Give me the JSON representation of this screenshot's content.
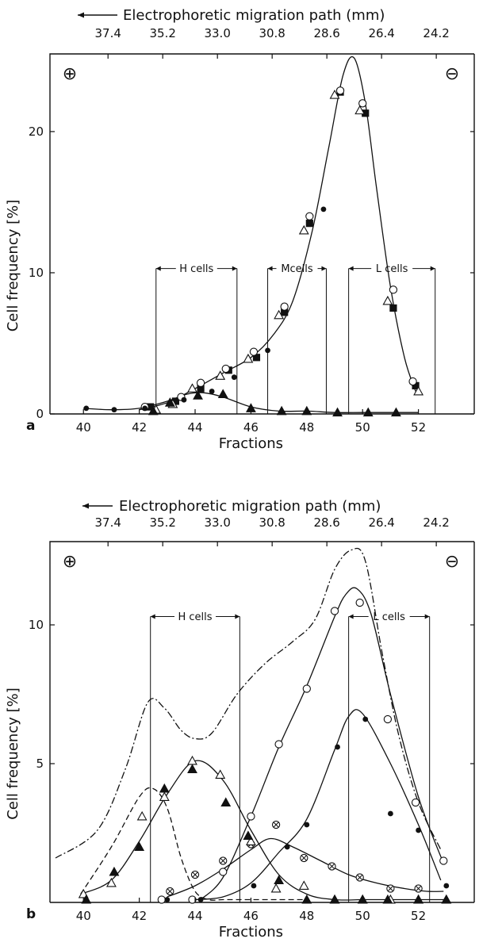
{
  "chart_data": [
    {
      "type": "scatter",
      "panel_label": "a",
      "top_axis_label": "Electrophoretic migration path (mm)",
      "top_ticks": [
        "37.4",
        "35.2",
        "33.0",
        "30.8",
        "28.6",
        "26.4",
        "24.2"
      ],
      "top_tick_fractions": [
        40.88,
        42.84,
        44.8,
        46.76,
        48.72,
        50.68,
        52.64
      ],
      "xlabel": "Fractions",
      "ylabel": "Cell frequency [%]",
      "x_ticks": [
        40,
        42,
        44,
        46,
        48,
        50,
        52
      ],
      "y_ticks": [
        0,
        10,
        20
      ],
      "xlim": [
        38.8,
        54
      ],
      "ylim": [
        0,
        25.5
      ],
      "left_symbol": "⊕",
      "right_symbol": "⊖",
      "regions": [
        {
          "label": "H cells",
          "x": [
            42.6,
            45.5
          ],
          "y": 10.3
        },
        {
          "label": "Mcells",
          "x": [
            46.6,
            48.7
          ],
          "y": 10.3
        },
        {
          "label": "L cells",
          "x": [
            49.5,
            52.6
          ],
          "y": 10.3
        }
      ],
      "series": [
        {
          "marker": "square-filled",
          "x": [
            42.4,
            43.3,
            44.2,
            45.2,
            46.2,
            47.2,
            48.1,
            49.2,
            50.1,
            51.1,
            51.9
          ],
          "y": [
            0.5,
            0.9,
            1.8,
            3.1,
            4.0,
            7.2,
            13.5,
            22.8,
            21.3,
            7.5,
            2.0
          ]
        },
        {
          "marker": "circle-open",
          "x": [
            42.2,
            43.5,
            44.2,
            45.1,
            46.1,
            47.2,
            48.1,
            49.2,
            50.0,
            51.1,
            51.8
          ],
          "y": [
            0.5,
            1.2,
            2.2,
            3.2,
            4.4,
            7.6,
            14.0,
            22.9,
            22.0,
            8.8,
            2.3
          ]
        },
        {
          "marker": "triangle-open",
          "x": [
            42.6,
            43.2,
            43.9,
            44.9,
            45.9,
            47.0,
            47.9,
            49.0,
            49.9,
            50.9,
            52.0
          ],
          "y": [
            0.3,
            0.7,
            1.8,
            2.7,
            3.9,
            7.0,
            13.0,
            22.6,
            21.5,
            8.0,
            1.6
          ]
        },
        {
          "marker": "triangle-filled",
          "x": [
            42.5,
            43.1,
            44.1,
            45.0,
            46.0,
            47.1,
            48.0,
            49.1,
            50.2,
            51.2
          ],
          "y": [
            0.2,
            0.8,
            1.3,
            1.4,
            0.4,
            0.2,
            0.2,
            0.1,
            0.1,
            0.1
          ]
        },
        {
          "marker": "dot",
          "x": [
            40.1,
            41.1,
            42.2,
            43.6,
            44.6,
            45.4,
            46.6,
            48.6
          ],
          "y": [
            0.4,
            0.3,
            0.4,
            1.0,
            1.6,
            2.6,
            4.5,
            14.5
          ]
        }
      ],
      "curves": [
        {
          "style": "solid",
          "x": [
            42.0,
            43.0,
            44.0,
            45.0,
            46.0,
            46.8,
            47.5,
            48.2,
            48.8,
            49.3,
            49.7,
            50.1,
            50.5,
            51.0,
            51.5,
            51.9
          ],
          "y": [
            0.3,
            0.8,
            1.8,
            2.9,
            4.0,
            5.6,
            8.0,
            13.0,
            19.0,
            24.0,
            25.2,
            22.0,
            16.0,
            9.0,
            4.0,
            1.6
          ]
        },
        {
          "style": "solid",
          "x": [
            40.0,
            41.0,
            42.0,
            43.0,
            43.7,
            44.3,
            45.0,
            46.0,
            47.0,
            48.0,
            49.0,
            50.0,
            51.0,
            52.0
          ],
          "y": [
            0.4,
            0.3,
            0.4,
            0.9,
            1.4,
            1.5,
            1.2,
            0.5,
            0.2,
            0.2,
            0.1,
            0.1,
            0.1,
            0.1
          ]
        }
      ]
    },
    {
      "type": "scatter",
      "panel_label": "b",
      "top_axis_label": "Electrophoretic migration path (mm)",
      "top_ticks": [
        "37.4",
        "35.2",
        "33.0",
        "30.8",
        "28.6",
        "26.4",
        "24.2"
      ],
      "top_tick_fractions": [
        40.88,
        42.84,
        44.8,
        46.76,
        48.72,
        50.68,
        52.64
      ],
      "xlabel": "Fractions",
      "ylabel": "Cell frequency [%]",
      "x_ticks": [
        40,
        42,
        44,
        46,
        48,
        50,
        52
      ],
      "y_ticks": [
        5,
        10
      ],
      "xlim": [
        38.8,
        54
      ],
      "ylim": [
        0,
        13
      ],
      "left_symbol": "⊕",
      "right_symbol": "⊖",
      "regions": [
        {
          "label": "H cells",
          "x": [
            42.4,
            45.6
          ],
          "y": 10.3
        },
        {
          "label": "L cells",
          "x": [
            49.5,
            52.4
          ],
          "y": 10.3
        }
      ],
      "series": [
        {
          "marker": "circle-open",
          "x": [
            42.8,
            43.9,
            45.0,
            46.0,
            47.0,
            48.0,
            49.0,
            49.9,
            50.9,
            51.9,
            52.9
          ],
          "y": [
            0.1,
            0.1,
            1.1,
            3.1,
            5.7,
            7.7,
            10.5,
            10.8,
            6.6,
            3.6,
            1.5
          ]
        },
        {
          "marker": "dot",
          "x": [
            43.0,
            44.2,
            46.1,
            47.3,
            48.0,
            49.1,
            50.1,
            51.0,
            52.0,
            53.0
          ],
          "y": [
            0.1,
            0.1,
            0.6,
            2.0,
            2.8,
            5.6,
            6.6,
            3.2,
            2.6,
            0.6
          ]
        },
        {
          "marker": "circle-cross",
          "x": [
            43.1,
            44.0,
            45.0,
            46.0,
            46.9,
            47.9,
            48.9,
            49.9,
            51.0,
            52.0
          ],
          "y": [
            0.4,
            1.0,
            1.5,
            2.1,
            2.8,
            1.6,
            1.3,
            0.9,
            0.5,
            0.5
          ]
        },
        {
          "marker": "triangle-open",
          "x": [
            40.0,
            41.0,
            42.1,
            42.9,
            43.9,
            44.9,
            46.0,
            46.9,
            47.9,
            49.0,
            50.0,
            51.0,
            52.0,
            53.0
          ],
          "y": [
            0.3,
            0.7,
            3.1,
            3.8,
            5.1,
            4.6,
            2.2,
            0.5,
            0.6,
            0.1,
            0.1,
            0.1,
            0.1,
            0.1
          ]
        },
        {
          "marker": "triangle-filled",
          "x": [
            40.1,
            41.1,
            42.0,
            42.9,
            43.9,
            45.1,
            45.9,
            47.0,
            48.0,
            49.0,
            50.0,
            50.9,
            52.0,
            53.0
          ],
          "y": [
            0.1,
            1.1,
            2.0,
            4.1,
            4.8,
            3.6,
            2.4,
            0.8,
            0.1,
            0.1,
            0.1,
            0.1,
            0.1,
            0.1
          ]
        }
      ],
      "curves": [
        {
          "style": "dash-dot",
          "x": [
            39.0,
            40.5,
            41.5,
            42.3,
            42.9,
            43.5,
            44.0,
            44.6,
            45.5,
            46.5,
            47.5,
            48.3,
            49.0,
            49.6,
            50.1,
            50.7,
            51.3,
            52.0,
            52.8
          ],
          "y": [
            1.6,
            2.6,
            4.8,
            7.2,
            7.0,
            6.2,
            5.9,
            6.1,
            7.5,
            8.6,
            9.4,
            10.2,
            12.0,
            12.7,
            12.3,
            9.0,
            6.0,
            3.6,
            1.9
          ]
        },
        {
          "style": "solid",
          "x": [
            39.9,
            41.0,
            42.0,
            43.0,
            44.0,
            45.0,
            46.0,
            47.0,
            48.0,
            49.0,
            50.0,
            50.5,
            51.0,
            52.0,
            53.0
          ],
          "y": [
            0.3,
            0.8,
            2.2,
            3.9,
            5.1,
            4.4,
            2.6,
            1.0,
            0.3,
            0.1,
            0.1,
            0.1,
            0.1,
            0.1,
            0.1
          ]
        },
        {
          "style": "dashed",
          "x": [
            39.9,
            41.0,
            42.0,
            42.5,
            43.0,
            43.5,
            44.0,
            44.5,
            45.0,
            46.0,
            47.0,
            48.0
          ],
          "y": [
            0.3,
            2.0,
            3.8,
            4.1,
            3.4,
            1.6,
            0.4,
            0.1,
            0.1,
            0.1,
            0.1,
            0.1
          ]
        },
        {
          "style": "solid",
          "x": [
            44.0,
            45.0,
            46.0,
            47.0,
            48.0,
            49.0,
            49.5,
            50.0,
            51.0,
            52.0,
            52.8
          ],
          "y": [
            0.1,
            0.2,
            0.7,
            1.8,
            3.0,
            5.5,
            6.7,
            6.8,
            5.0,
            2.8,
            0.8
          ]
        },
        {
          "style": "solid",
          "x": [
            44.2,
            45.0,
            46.0,
            47.0,
            48.0,
            49.0,
            49.4,
            49.8,
            50.3,
            51.0,
            52.0,
            52.9
          ],
          "y": [
            0.1,
            0.9,
            3.1,
            5.6,
            7.8,
            10.3,
            11.1,
            11.3,
            10.4,
            7.5,
            3.8,
            1.4
          ]
        },
        {
          "style": "solid",
          "x": [
            43.0,
            44.0,
            45.0,
            46.0,
            46.7,
            47.5,
            48.5,
            49.5,
            50.5,
            51.5,
            52.3,
            52.9
          ],
          "y": [
            0.2,
            0.6,
            1.2,
            1.9,
            2.3,
            2.0,
            1.5,
            1.0,
            0.7,
            0.5,
            0.4,
            0.4
          ]
        }
      ]
    }
  ]
}
